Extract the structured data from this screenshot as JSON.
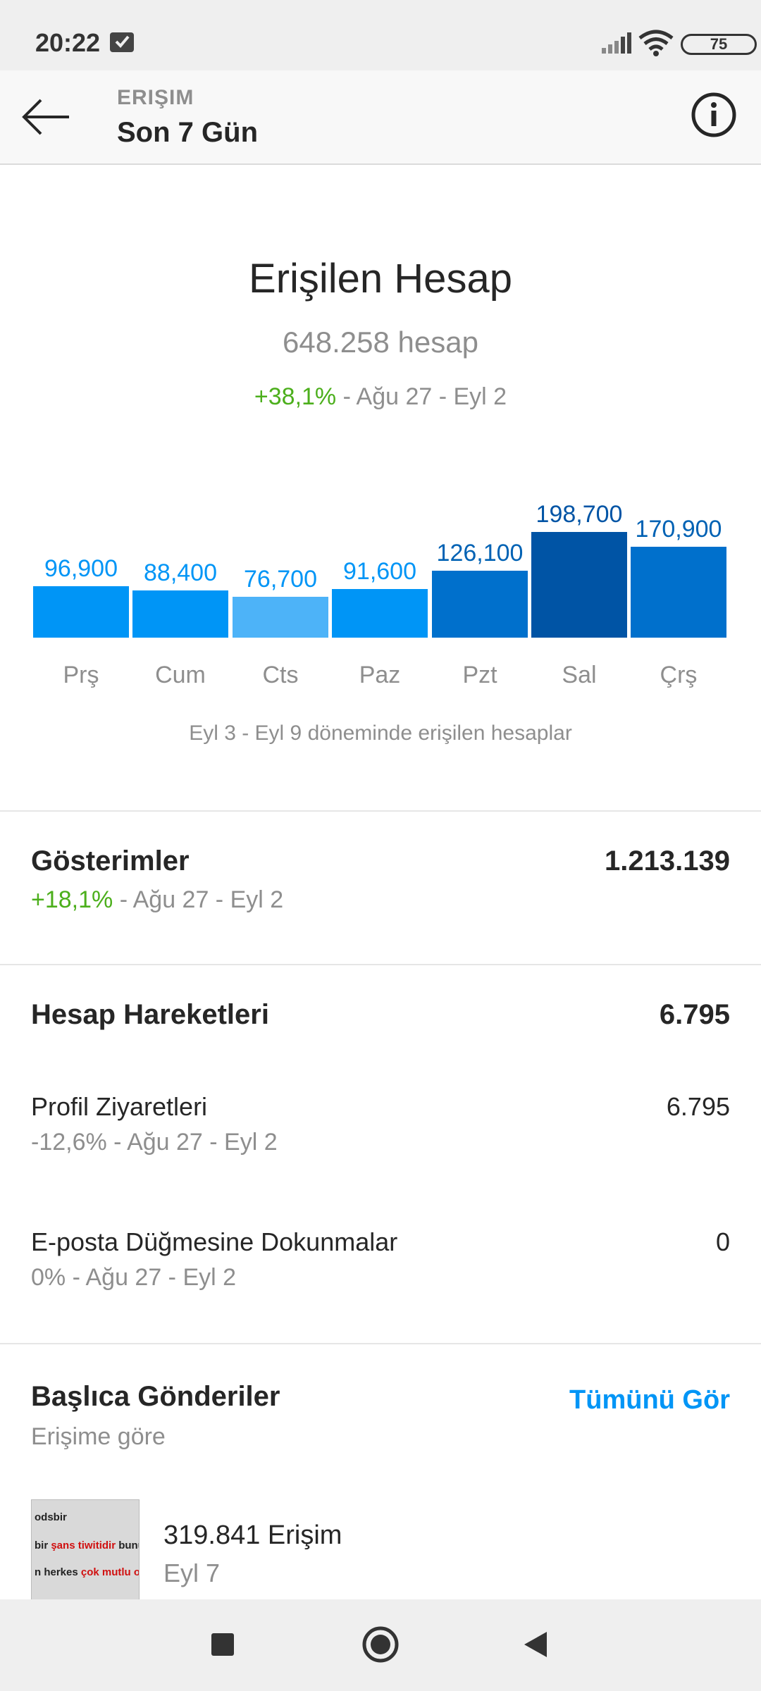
{
  "status_bar": {
    "time": "20:22",
    "battery": "75"
  },
  "header": {
    "subtitle": "ERIŞIM",
    "title": "Son 7 Gün"
  },
  "reach": {
    "title": "Erişilen Hesap",
    "count": "648.258 hesap",
    "change": "+38,1%",
    "period": " - Ağu 27 - Eyl 2"
  },
  "chart_data": {
    "type": "bar",
    "categories": [
      "Prş",
      "Cum",
      "Cts",
      "Paz",
      "Pzt",
      "Sal",
      "Çrş"
    ],
    "values": [
      96900,
      88400,
      76700,
      91600,
      126100,
      198700,
      170900
    ],
    "value_labels": [
      "96,900",
      "88,400",
      "76,700",
      "91,600",
      "126,100",
      "198,700",
      "170,900"
    ],
    "colors": [
      "#0095f6",
      "#0095f6",
      "#4db3f8",
      "#0095f6",
      "#0070cc",
      "#0054a5",
      "#0070cc"
    ],
    "label_colors": [
      "#0095f6",
      "#0095f6",
      "#0095f6",
      "#0095f6",
      "#0062b4",
      "#0054a5",
      "#0062b4"
    ],
    "caption": "Eyl 3 - Eyl 9 döneminde erişilen hesaplar"
  },
  "impressions": {
    "title": "Gösterimler",
    "value": "1.213.139",
    "change": "+18,1%",
    "period": " - Ağu 27 - Eyl 2"
  },
  "account_actions": {
    "title": "Hesap Hareketleri",
    "value": "6.795",
    "items": [
      {
        "label": "Profil Ziyaretleri",
        "value": "6.795",
        "sub": "-12,6% - Ağu 27 - Eyl 2"
      },
      {
        "label": "E-posta Düğmesine Dokunmalar",
        "value": "0",
        "sub": "0% - Ağu 27 - Eyl 2"
      }
    ]
  },
  "top_posts": {
    "title": "Başlıca Gönderiler",
    "see_all": "Tümünü Gör",
    "subtitle": "Erişime göre",
    "post": {
      "thumb_line1": "odsbir",
      "thumb_line2_a": "bir ",
      "thumb_line2_b": "şans tiwitidir",
      "thumb_line2_c": " bunu",
      "thumb_line3_a": "n herkes ",
      "thumb_line3_b": "çok mutlu ol",
      "reach": "319.841 Erişim",
      "date": "Eyl 7"
    }
  },
  "nav": {
    "recent_icon": "square-icon",
    "home_icon": "circle-icon",
    "back_icon": "triangle-icon"
  }
}
